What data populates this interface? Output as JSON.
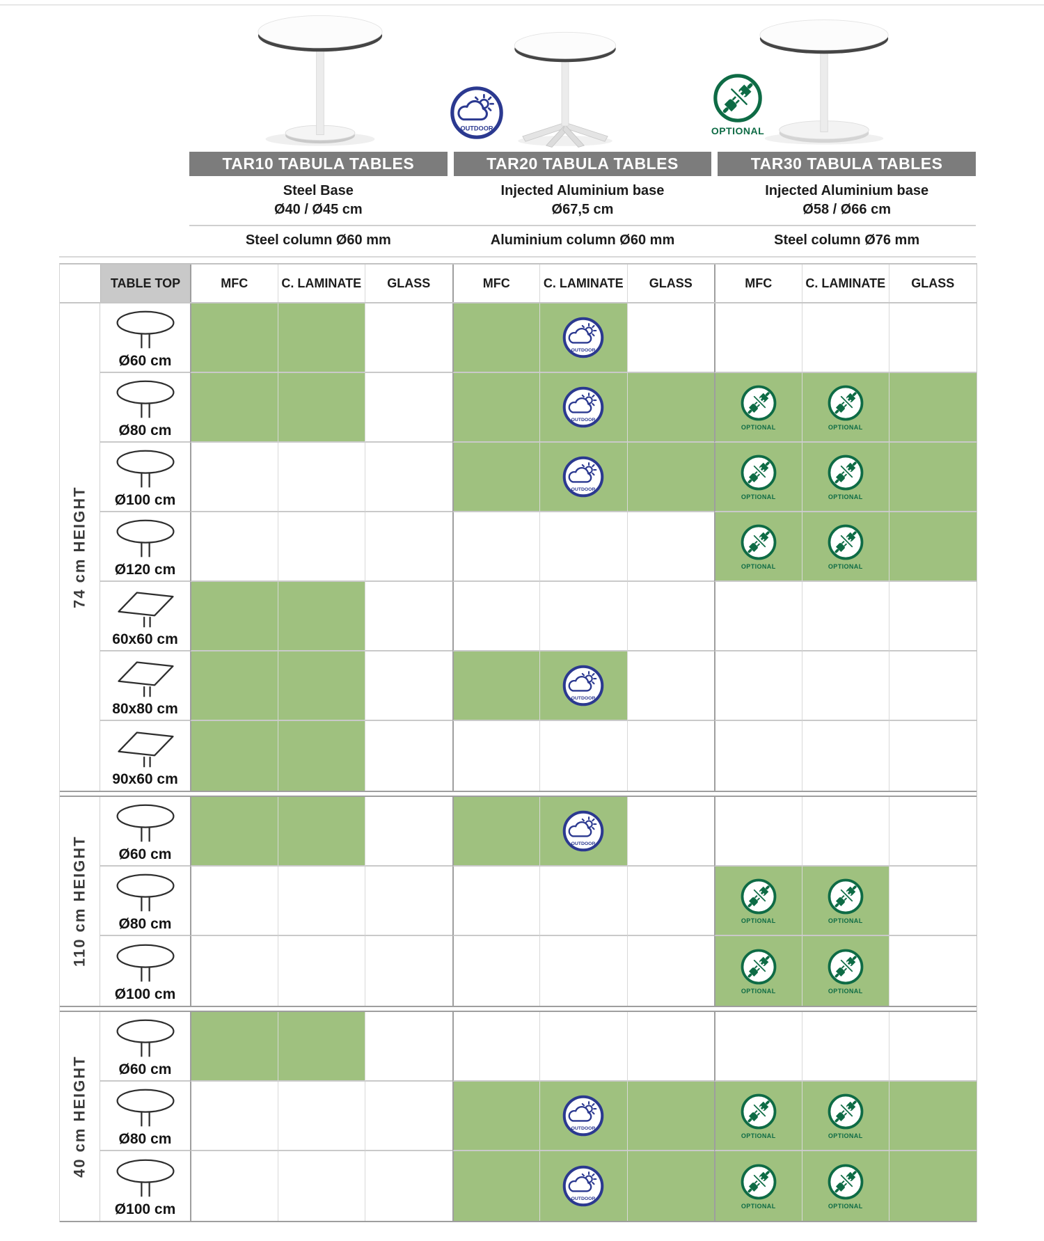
{
  "products": [
    {
      "code": "TAR10",
      "title": "TAR10 TABULA TABLES",
      "base_line1": "Steel Base",
      "base_line2": "Ø40 / Ø45 cm",
      "column_spec": "Steel column Ø60 mm"
    },
    {
      "code": "TAR20",
      "title": "TAR20 TABULA TABLES",
      "base_line1": "Injected Aluminium base",
      "base_line2": "Ø67,5 cm",
      "column_spec": "Aluminium column Ø60 mm",
      "badge": "outdoor"
    },
    {
      "code": "TAR30",
      "title": "TAR30 TABULA TABLES",
      "base_line1": "Injected Aluminium base",
      "base_line2": "Ø58 / Ø66 cm",
      "column_spec": "Steel column Ø76 mm",
      "badge": "optional"
    }
  ],
  "badges": {
    "outdoor_label": "OUTDOOR",
    "optional_label": "OPTIONAL"
  },
  "table": {
    "corner_label": "TABLE TOP",
    "material_headers": [
      "MFC",
      "C. LAMINATE",
      "GLASS"
    ],
    "cell_codes": {
      "": "not available",
      "g": "available",
      "go": "available + outdoor icon",
      "gp": "available + optional electrification icon"
    },
    "sections": [
      {
        "label": "74 cm HEIGHT",
        "rows": [
          {
            "size": "Ø60 cm",
            "shape": "round",
            "cells": [
              "g",
              "g",
              "",
              "g",
              "go",
              "",
              "",
              "",
              ""
            ]
          },
          {
            "size": "Ø80 cm",
            "shape": "round",
            "cells": [
              "g",
              "g",
              "",
              "g",
              "go",
              "g",
              "gp",
              "gp",
              "g"
            ]
          },
          {
            "size": "Ø100 cm",
            "shape": "round",
            "cells": [
              "",
              "",
              "",
              "g",
              "go",
              "g",
              "gp",
              "gp",
              "g"
            ]
          },
          {
            "size": "Ø120 cm",
            "shape": "round",
            "cells": [
              "",
              "",
              "",
              "",
              "",
              "",
              "gp",
              "gp",
              "g"
            ]
          },
          {
            "size": "60x60 cm",
            "shape": "square",
            "cells": [
              "g",
              "g",
              "",
              "",
              "",
              "",
              "",
              "",
              ""
            ]
          },
          {
            "size": "80x80 cm",
            "shape": "square",
            "cells": [
              "g",
              "g",
              "",
              "g",
              "go",
              "",
              "",
              "",
              ""
            ]
          },
          {
            "size": "90x60 cm",
            "shape": "square",
            "cells": [
              "g",
              "g",
              "",
              "",
              "",
              "",
              "",
              "",
              ""
            ]
          }
        ]
      },
      {
        "label": "110 cm HEIGHT",
        "rows": [
          {
            "size": "Ø60 cm",
            "shape": "round",
            "cells": [
              "g",
              "g",
              "",
              "g",
              "go",
              "",
              "",
              "",
              ""
            ]
          },
          {
            "size": "Ø80 cm",
            "shape": "round",
            "cells": [
              "",
              "",
              "",
              "",
              "",
              "",
              "gp",
              "gp",
              ""
            ]
          },
          {
            "size": "Ø100 cm",
            "shape": "round",
            "cells": [
              "",
              "",
              "",
              "",
              "",
              "",
              "gp",
              "gp",
              ""
            ]
          }
        ]
      },
      {
        "label": "40 cm HEIGHT",
        "rows": [
          {
            "size": "Ø60 cm",
            "shape": "round",
            "cells": [
              "g",
              "g",
              "",
              "",
              "",
              "",
              "",
              "",
              ""
            ]
          },
          {
            "size": "Ø80 cm",
            "shape": "round",
            "cells": [
              "",
              "",
              "",
              "g",
              "go",
              "g",
              "gp",
              "gp",
              "g"
            ]
          },
          {
            "size": "Ø100 cm",
            "shape": "round",
            "cells": [
              "",
              "",
              "",
              "g",
              "go",
              "g",
              "gp",
              "gp",
              "g"
            ]
          }
        ]
      }
    ]
  },
  "colors": {
    "available_green": "#9fc17f",
    "header_gray": "#7c7c7c",
    "outdoor_navy": "#2b3990",
    "optional_green": "#0e6b45"
  }
}
